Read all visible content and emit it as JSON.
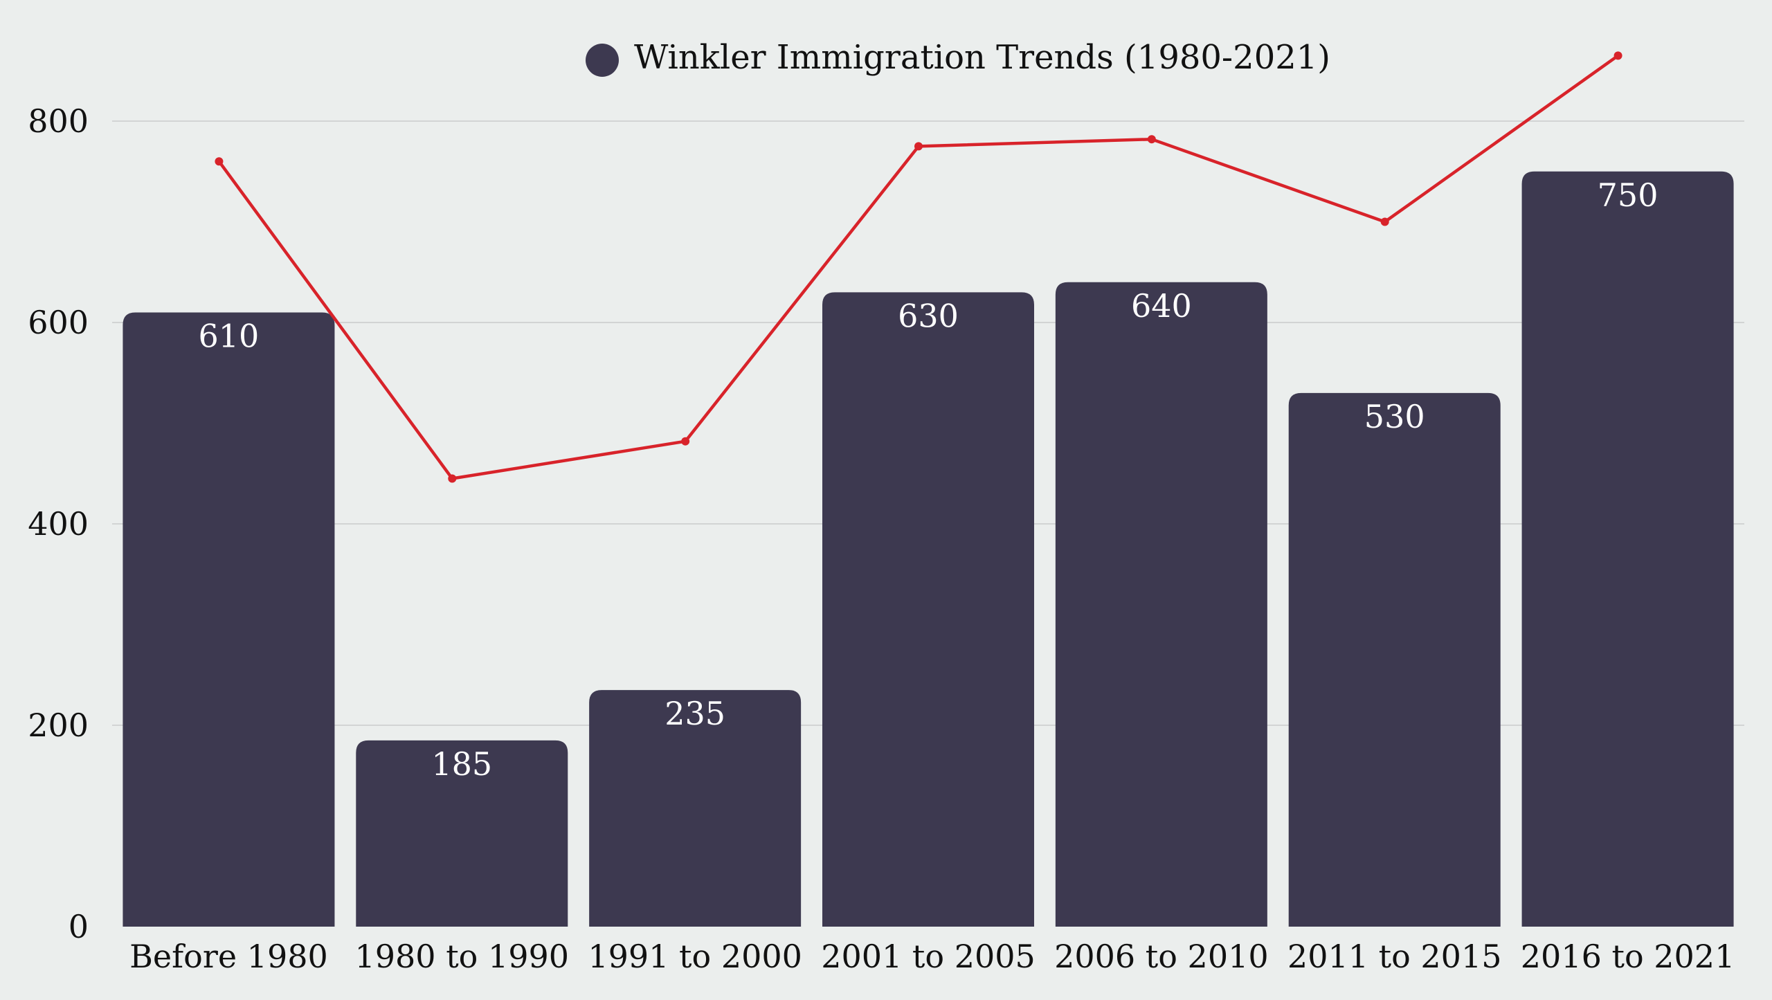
{
  "chart_data": {
    "type": "bar",
    "title": "",
    "xlabel": "",
    "ylabel": "",
    "ylim": [
      0,
      800
    ],
    "yticks": [
      0,
      200,
      400,
      600,
      800
    ],
    "grid": true,
    "legend_position": "top-center",
    "categories": [
      "Before 1980",
      "1980 to 1990",
      "1991 to 2000",
      "2001 to 2005",
      "2006 to 2010",
      "2011 to 2015",
      "2016 to 2021"
    ],
    "series": [
      {
        "name": "Winkler Immigration Trends (1980-2021)",
        "type": "bar",
        "color": "#3d3950",
        "values": [
          610,
          185,
          235,
          630,
          640,
          530,
          750
        ],
        "show_data_labels": true
      },
      {
        "type": "line",
        "color": "#d8232a",
        "values": [
          760,
          445,
          482,
          775,
          782,
          700,
          865
        ]
      }
    ]
  }
}
